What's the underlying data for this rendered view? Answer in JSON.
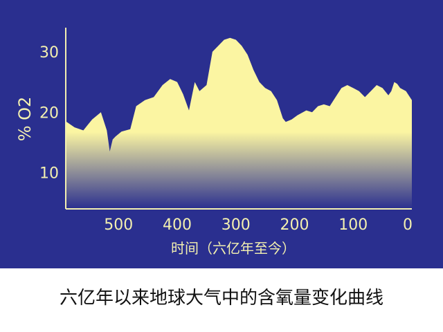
{
  "caption": "六亿年以来地球大气中的含氧量变化曲线",
  "colors": {
    "background": "#2a2f8f",
    "text": "#f3f0b0",
    "fill_top": "#fbf5a2",
    "fill_bottom": "#2a2f8f"
  },
  "chart_data": {
    "type": "area",
    "title": "",
    "xlabel": "时间（六亿年至今）",
    "ylabel": "% O2",
    "xlim": [
      590,
      0
    ],
    "ylim": [
      4,
      34
    ],
    "xticks": [
      500,
      400,
      300,
      200,
      100,
      0
    ],
    "xtick_labels": [
      "500",
      "400",
      "300",
      "200",
      "100",
      "0"
    ],
    "yticks": [
      10,
      20,
      30
    ],
    "ytick_labels": [
      "10",
      "20",
      "30"
    ],
    "grid": false,
    "series": [
      {
        "x": [
          590,
          575,
          560,
          545,
          530,
          520,
          515,
          510,
          505,
          495,
          480,
          470,
          455,
          440,
          425,
          412,
          400,
          390,
          380,
          370,
          362,
          350,
          340,
          330,
          320,
          310,
          300,
          290,
          280,
          270,
          260,
          250,
          240,
          230,
          220,
          215,
          205,
          195,
          180,
          170,
          160,
          150,
          140,
          130,
          120,
          110,
          100,
          90,
          80,
          70,
          60,
          50,
          40,
          35,
          30,
          25,
          20,
          10,
          0
        ],
        "y": [
          18.5,
          17.5,
          17,
          18.8,
          20,
          17,
          13.5,
          15.5,
          16,
          16.8,
          17.2,
          21,
          22,
          22.5,
          24.5,
          25.5,
          25,
          23,
          20.3,
          25,
          23.5,
          24.5,
          30,
          31,
          32,
          32.3,
          32,
          31,
          29.5,
          27,
          25,
          24,
          23.5,
          22,
          19,
          18.4,
          18.8,
          19.5,
          20.3,
          20,
          21,
          21.3,
          21,
          22.5,
          24,
          24.5,
          24,
          23.5,
          22.5,
          23.5,
          24.5,
          24,
          22.8,
          23.5,
          25,
          24.7,
          24,
          23.5,
          22
        ]
      }
    ]
  }
}
